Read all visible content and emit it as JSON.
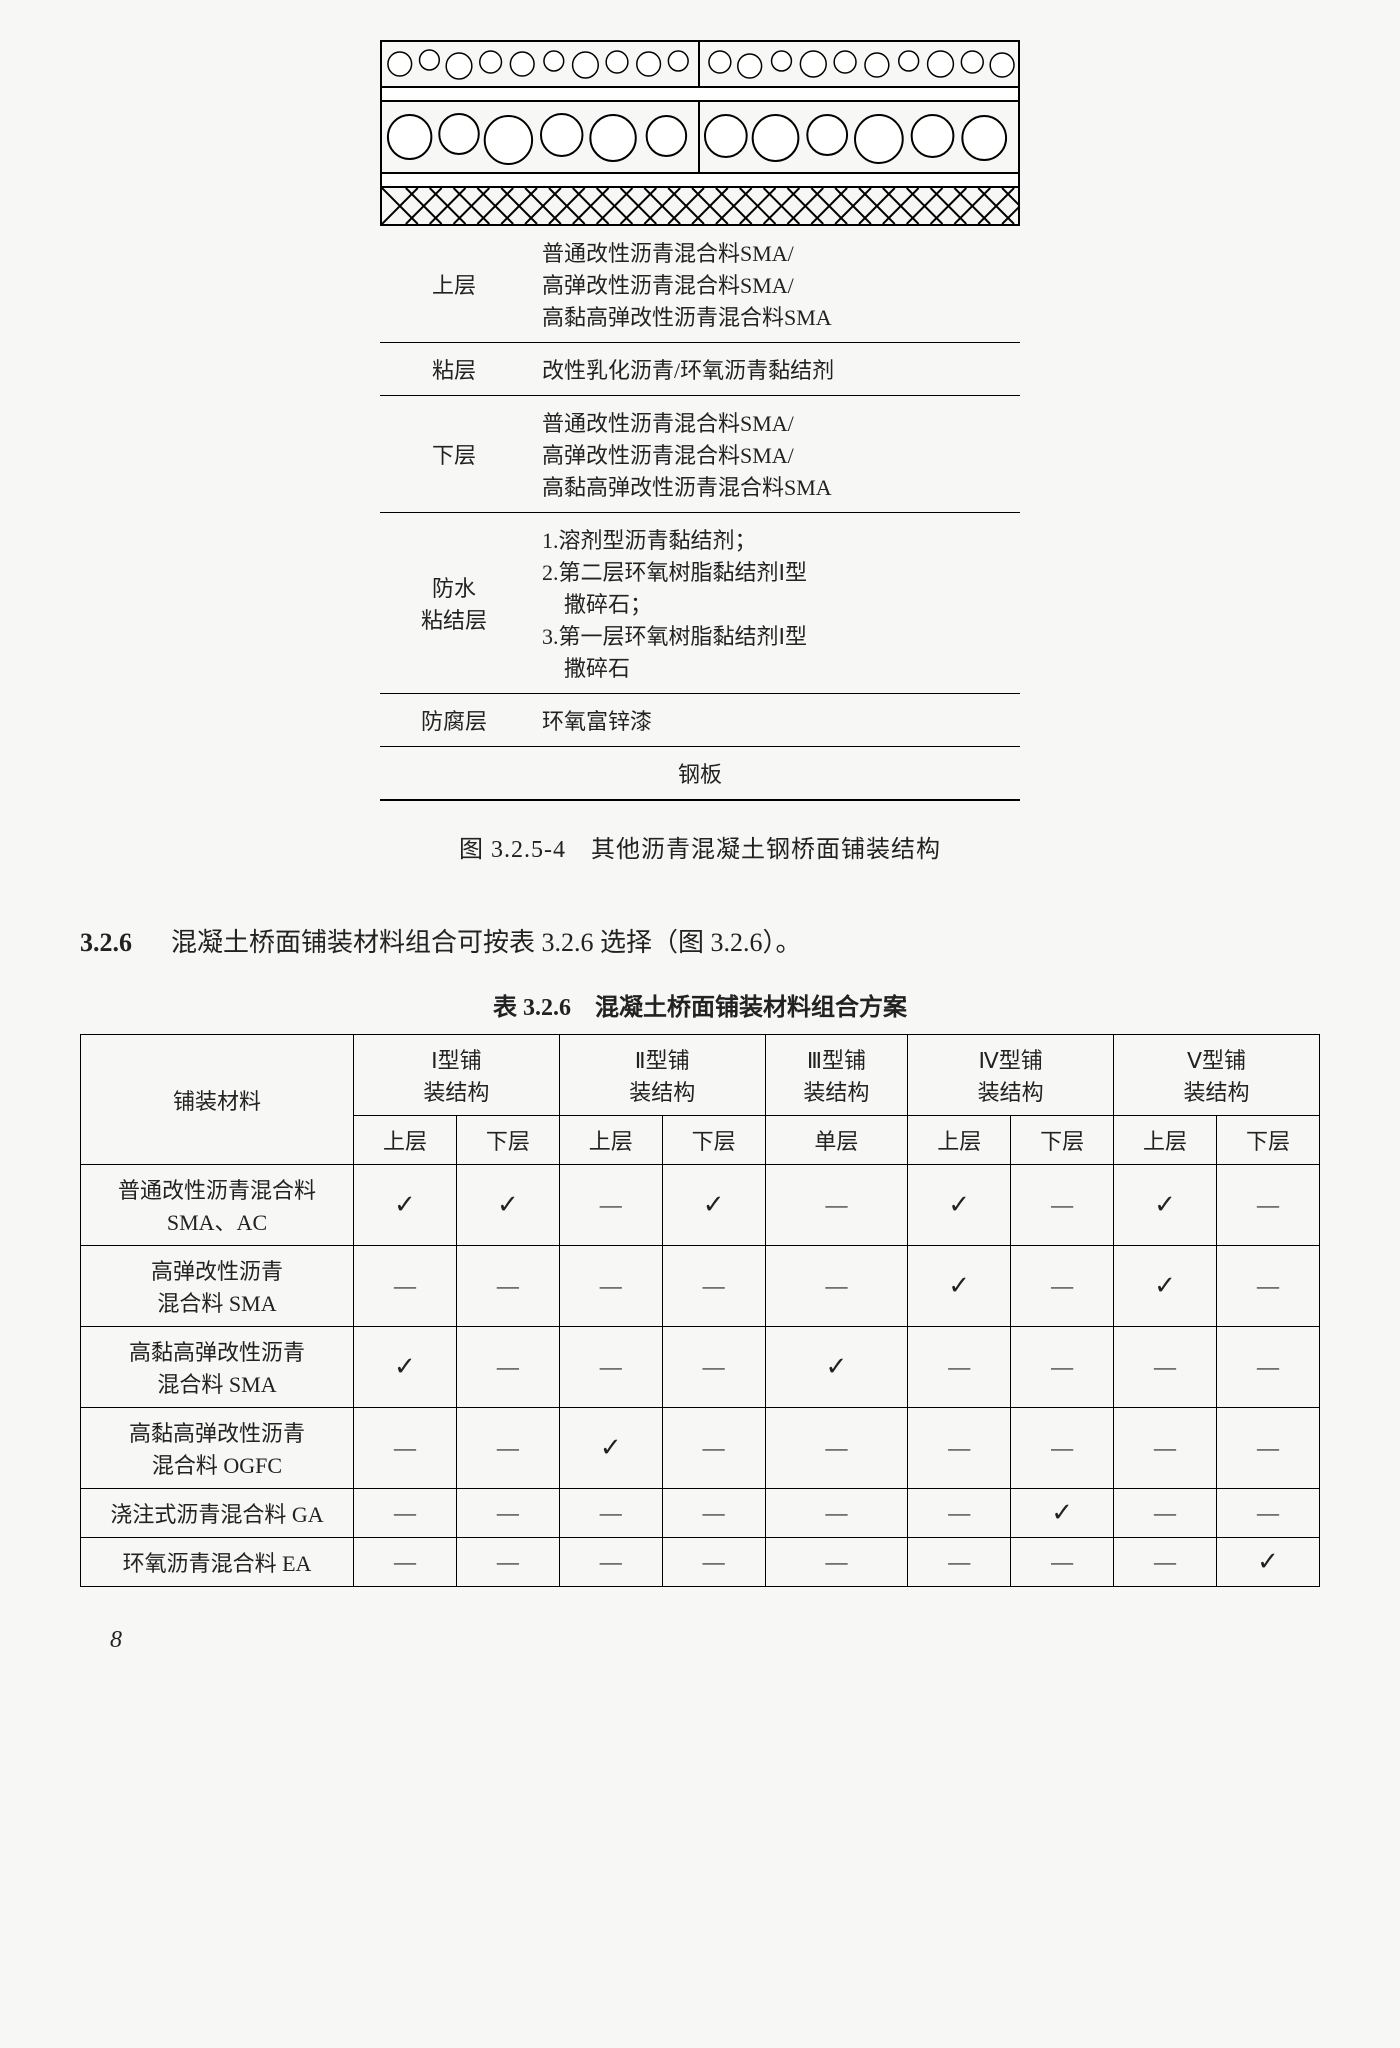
{
  "figure": {
    "legend_rows": [
      {
        "label": "上层",
        "desc": "普通改性沥青混合料SMA/\n高弹改性沥青混合料SMA/\n高黏高弹改性沥青混合料SMA"
      },
      {
        "label": "粘层",
        "desc": "改性乳化沥青/环氧沥青黏结剂"
      },
      {
        "label": "下层",
        "desc": "普通改性沥青混合料SMA/\n高弹改性沥青混合料SMA/\n高黏高弹改性沥青混合料SMA"
      },
      {
        "label": "防水\n粘结层",
        "desc": "1.溶剂型沥青黏结剂；\n2.第二层环氧树脂黏结剂Ⅰ型\n　撒碎石；\n3.第一层环氧树脂黏结剂Ⅰ型\n　撒碎石"
      },
      {
        "label": "防腐层",
        "desc": "环氧富锌漆"
      },
      {
        "label": "",
        "desc": "钢板",
        "center": true
      }
    ],
    "caption": "图 3.2.5-4　其他沥青混凝土钢桥面铺装结构"
  },
  "section": {
    "num": "3.2.6",
    "text": "混凝土桥面铺装材料组合可按表 3.2.6 选择（图 3.2.6）。"
  },
  "table": {
    "title": "表 3.2.6　混凝土桥面铺装材料组合方案",
    "col_label": "铺装材料",
    "groups": [
      "Ⅰ型铺\n装结构",
      "Ⅱ型铺\n装结构",
      "Ⅲ型铺\n装结构",
      "Ⅳ型铺\n装结构",
      "Ⅴ型铺\n装结构"
    ],
    "sub": [
      "上层",
      "下层",
      "上层",
      "下层",
      "单层",
      "上层",
      "下层",
      "上层",
      "下层"
    ],
    "rows": [
      {
        "label": "普通改性沥青混合料\nSMA、AC",
        "cells": [
          "c",
          "c",
          "d",
          "c",
          "d",
          "c",
          "d",
          "c",
          "d"
        ]
      },
      {
        "label": "高弹改性沥青\n混合料 SMA",
        "cells": [
          "d",
          "d",
          "d",
          "d",
          "d",
          "c",
          "d",
          "c",
          "d"
        ]
      },
      {
        "label": "高黏高弹改性沥青\n混合料 SMA",
        "cells": [
          "c",
          "d",
          "d",
          "d",
          "c",
          "d",
          "d",
          "d",
          "d"
        ]
      },
      {
        "label": "高黏高弹改性沥青\n混合料 OGFC",
        "cells": [
          "d",
          "d",
          "c",
          "d",
          "d",
          "d",
          "d",
          "d",
          "d"
        ]
      },
      {
        "label": "浇注式沥青混合料 GA",
        "cells": [
          "d",
          "d",
          "d",
          "d",
          "d",
          "d",
          "c",
          "d",
          "d"
        ]
      },
      {
        "label": "环氧沥青混合料 EA",
        "cells": [
          "d",
          "d",
          "d",
          "d",
          "d",
          "d",
          "d",
          "d",
          "c"
        ]
      }
    ]
  },
  "marks": {
    "c": "✓",
    "d": "—"
  },
  "page": "8",
  "style": {
    "check_color": "#222",
    "border_color": "#000",
    "bg": "#f7f7f5"
  }
}
